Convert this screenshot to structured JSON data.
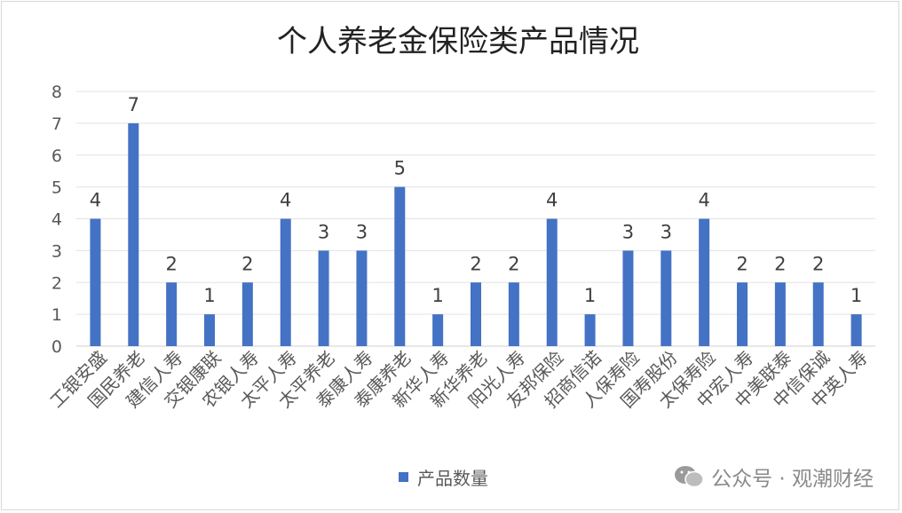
{
  "chart_data": {
    "type": "bar",
    "title": "个人养老金保险类产品情况",
    "categories": [
      "工银安盛",
      "国民养老",
      "建信人寿",
      "交银康联",
      "农银人寿",
      "太平人寿",
      "太平养老",
      "泰康人寿",
      "泰康养老",
      "新华人寿",
      "新华养老",
      "阳光人寿",
      "友邦保险",
      "招商信诺",
      "人保寿险",
      "国寿股份",
      "太保寿险",
      "中宏人寿",
      "中美联泰",
      "中信保诚",
      "中英人寿"
    ],
    "series": [
      {
        "name": "产品数量",
        "values": [
          4,
          7,
          2,
          1,
          2,
          4,
          3,
          3,
          5,
          1,
          2,
          2,
          4,
          1,
          3,
          3,
          4,
          2,
          2,
          2,
          1
        ],
        "color": "#4472c4"
      }
    ],
    "xlabel": "",
    "ylabel": "",
    "ylim": [
      0,
      8
    ],
    "yticks": [
      0,
      1,
      2,
      3,
      4,
      5,
      6,
      7,
      8
    ],
    "grid": true,
    "legend": "bottom",
    "data_labels": true
  },
  "watermark": {
    "text": "公众号 · 观潮财经",
    "icon": "wechat-icon"
  }
}
